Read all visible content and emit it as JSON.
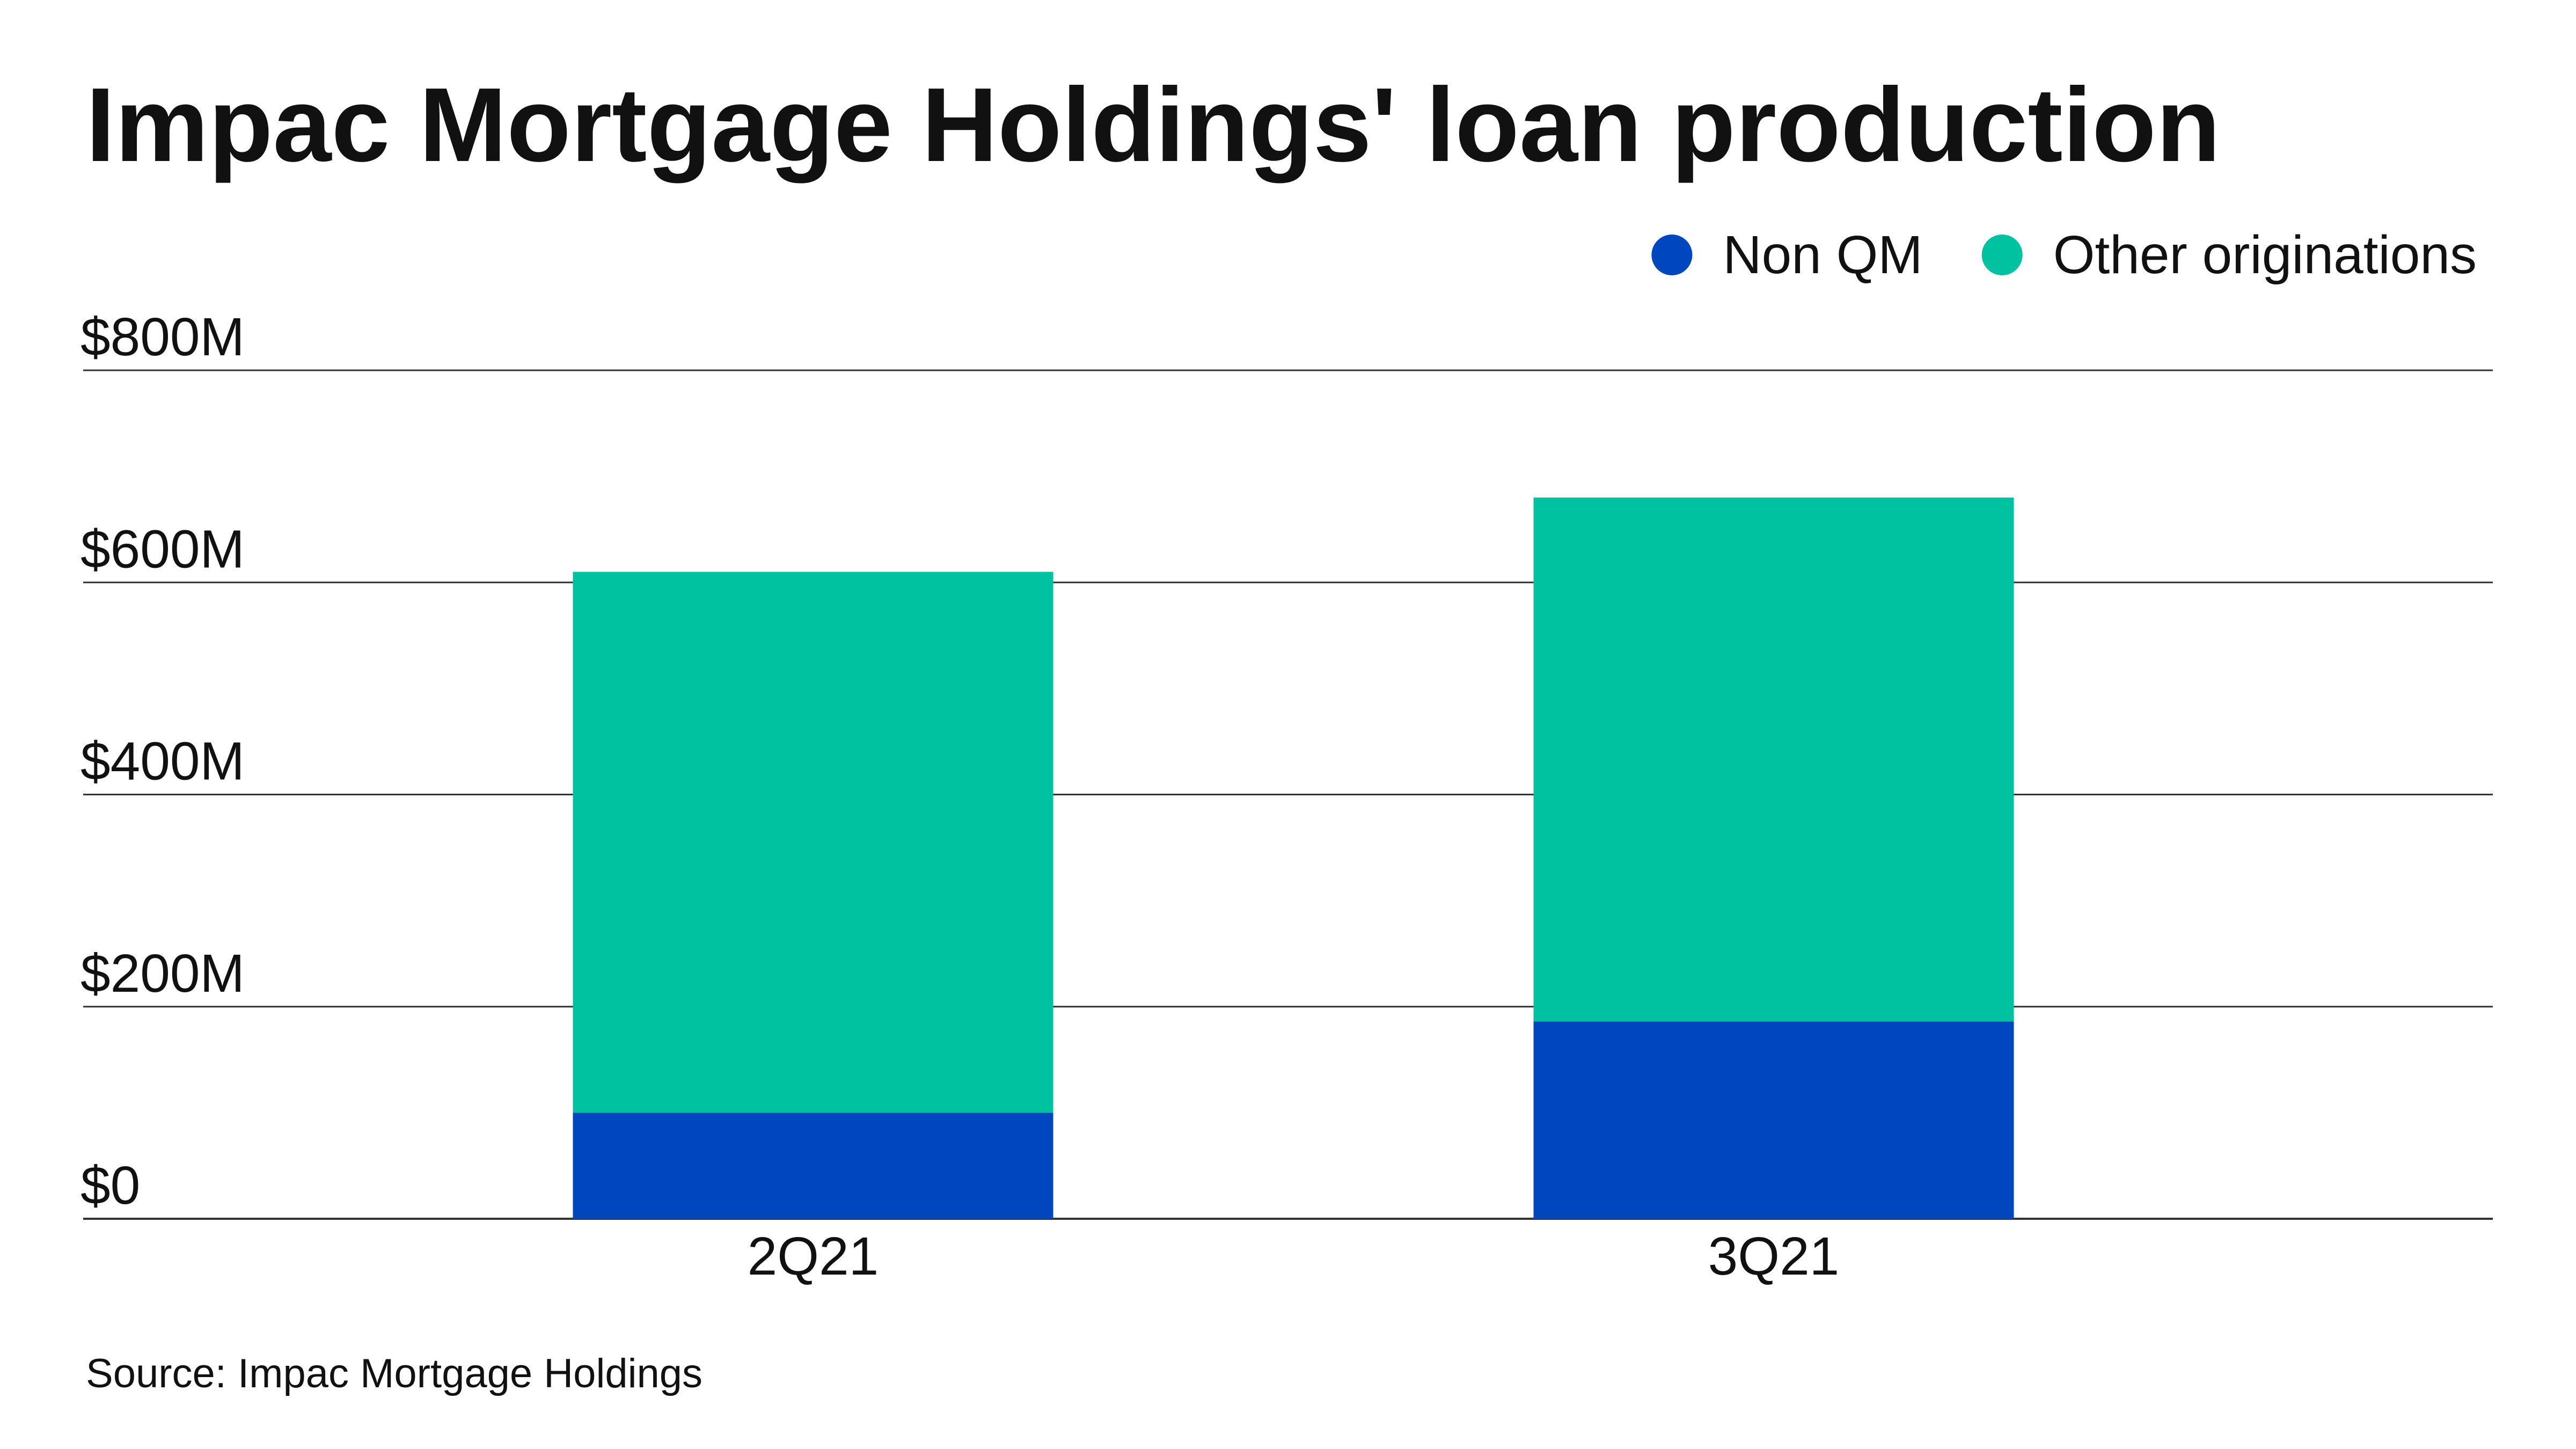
{
  "chart_data": {
    "type": "bar",
    "stacked": true,
    "title": "Impac Mortgage Holdings' loan production",
    "categories": [
      "2Q21",
      "3Q21"
    ],
    "series": [
      {
        "name": "Non QM",
        "values": [
          100,
          186
        ],
        "color": "#0047BF"
      },
      {
        "name": "Other originations",
        "values": [
          510,
          494
        ],
        "color": "#00C2A0"
      }
    ],
    "ylim": [
      0,
      800
    ],
    "yticks": [
      0,
      200,
      400,
      600,
      800
    ],
    "ytick_labels": [
      "$0",
      "$200M",
      "$400M",
      "$600M",
      "$800M"
    ],
    "unit": "$M",
    "grid": true,
    "legend_position": "top-right",
    "source": "Source: Impac Mortgage Holdings"
  }
}
